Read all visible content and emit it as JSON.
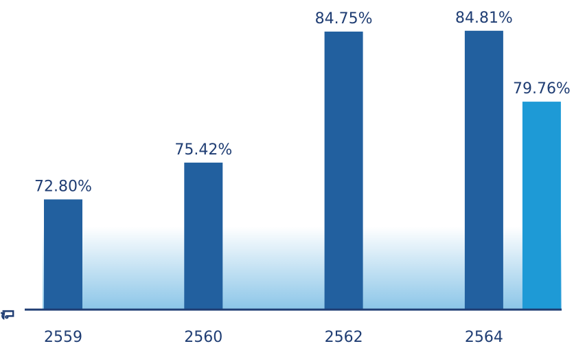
{
  "chart_data": {
    "type": "bar",
    "categories": [
      "2559",
      "2560",
      "2562",
      "2564"
    ],
    "series": [
      {
        "values": [
          72.8,
          75.42,
          84.75,
          84.81
        ],
        "labels": [
          "72.80%",
          "75.42%",
          "84.75%",
          "84.81%"
        ],
        "color": "#22609f"
      },
      {
        "values": [
          null,
          null,
          null,
          79.76
        ],
        "labels": [
          null,
          null,
          null,
          "79.76%"
        ],
        "color": "#1e9ad6"
      }
    ],
    "title": "",
    "xlabel": "ปี",
    "ylabel": "",
    "ylim": [
      65,
      87
    ],
    "grid": false,
    "legend": "none",
    "background_gradient_color": "#8cc6e8",
    "axis_color": "#1f3d73"
  }
}
